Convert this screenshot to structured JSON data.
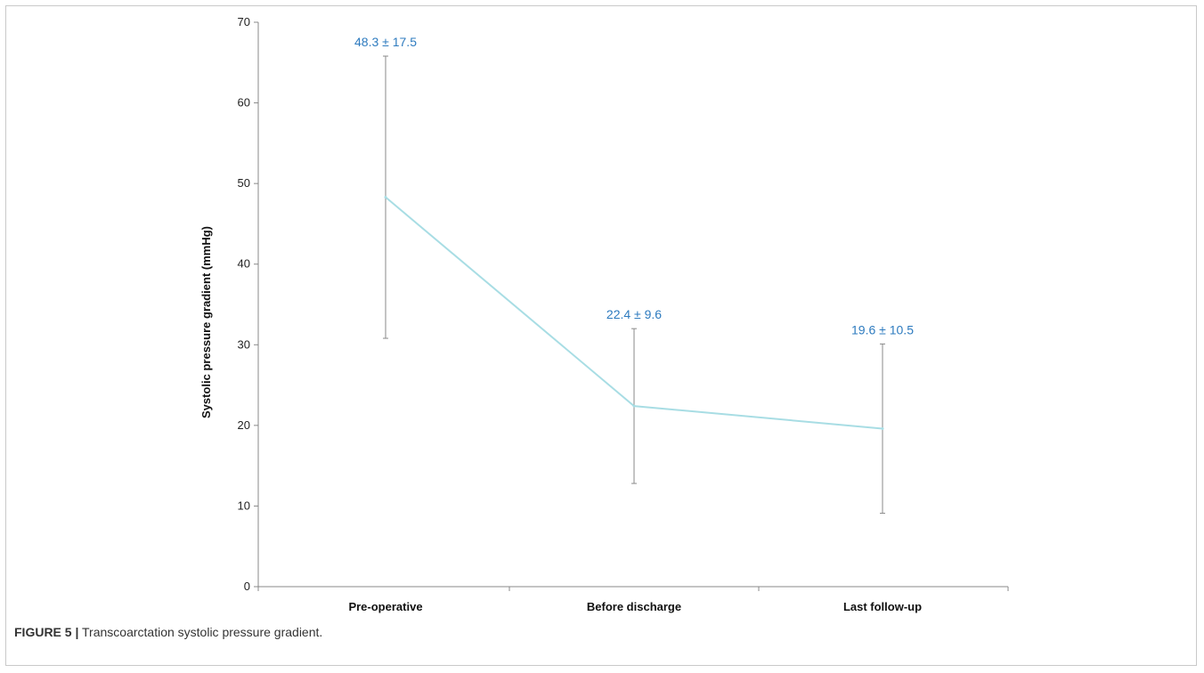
{
  "figure": {
    "label": "FIGURE 5 |",
    "caption": "Transcoarctation systolic pressure gradient."
  },
  "chart_data": {
    "type": "line",
    "title": "",
    "xlabel": "",
    "ylabel": "Systolic pressure gradient (mmHg)",
    "categories": [
      "Pre-operative",
      "Before discharge",
      "Last follow-up"
    ],
    "series": [
      {
        "values": [
          48.3,
          22.4,
          19.6
        ],
        "error": [
          17.5,
          9.6,
          10.5
        ],
        "labels": [
          "48.3 ± 17.5",
          "22.4 ± 9.6",
          "19.6 ± 10.5"
        ]
      }
    ],
    "ylim": [
      0,
      70
    ],
    "yticks": [
      0,
      10,
      20,
      30,
      40,
      50,
      60,
      70
    ],
    "grid": false,
    "colors": {
      "line": "#a8dde4",
      "error_bar": "#8a8a8a",
      "data_label": "#2e7bbf",
      "axis": "#888888"
    }
  }
}
